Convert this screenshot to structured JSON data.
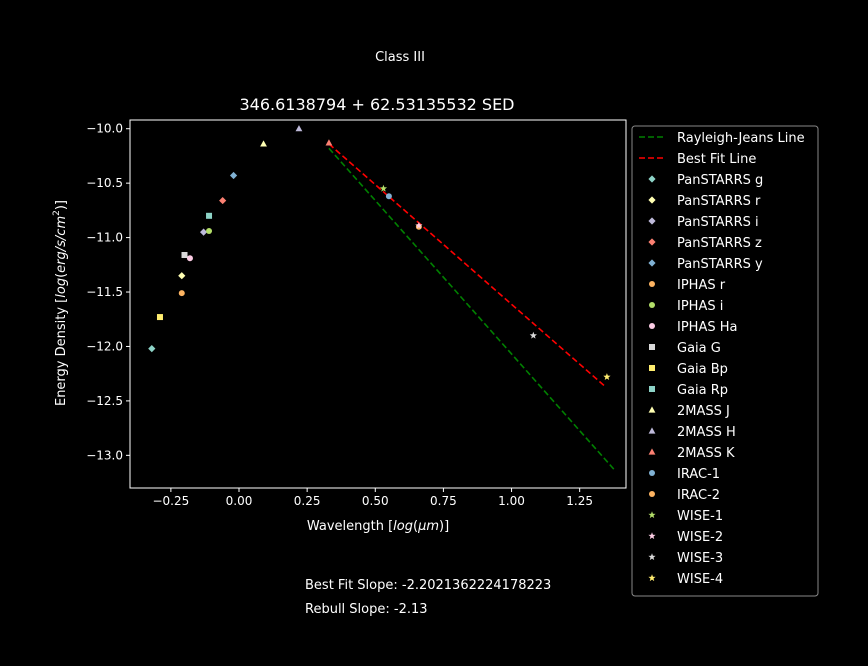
{
  "suptitle": "Class III",
  "footer": {
    "best_fit": "Best Fit Slope: -2.2021362224178223",
    "rebull": "Rebull Slope: -2.13"
  },
  "chart_data": {
    "type": "scatter",
    "title": "346.6138794 + 62.53135532 SED",
    "xlabel": "Wavelength [log(μm)]",
    "ylabel": "Energy Density [log(erg/s/cm²)]",
    "xlim": [
      -0.4,
      1.42
    ],
    "ylim": [
      -13.3,
      -9.92
    ],
    "xticks": [
      -0.25,
      0.0,
      0.25,
      0.5,
      0.75,
      1.0,
      1.25
    ],
    "xtick_labels": [
      "−0.25",
      "0.00",
      "0.25",
      "0.50",
      "0.75",
      "1.00",
      "1.25"
    ],
    "yticks": [
      -10.0,
      -10.5,
      -11.0,
      -11.5,
      -12.0,
      -12.5,
      -13.0
    ],
    "ytick_labels": [
      "−10.0",
      "−10.5",
      "−11.0",
      "−11.5",
      "−12.0",
      "−12.5",
      "−13.0"
    ],
    "legend_position": "outside-right",
    "lines": [
      {
        "name": "Rayleigh-Jeans Line",
        "color": "#008000",
        "dash": "dashed",
        "x": [
          0.33,
          1.38
        ],
        "y": [
          -10.18,
          -13.14
        ]
      },
      {
        "name": "Best Fit Line",
        "color": "#ff0000",
        "dash": "dashed",
        "x": [
          0.33,
          1.34
        ],
        "y": [
          -10.14,
          -12.36
        ]
      }
    ],
    "series": [
      {
        "name": "PanSTARRS g",
        "color": "#8dd3c7",
        "marker": "diamond",
        "x": [
          -0.32
        ],
        "y": [
          -12.02
        ]
      },
      {
        "name": "PanSTARRS r",
        "color": "#ffffb3",
        "marker": "diamond",
        "x": [
          -0.21
        ],
        "y": [
          -11.35
        ]
      },
      {
        "name": "PanSTARRS i",
        "color": "#bebada",
        "marker": "diamond",
        "x": [
          -0.13
        ],
        "y": [
          -10.95
        ]
      },
      {
        "name": "PanSTARRS z",
        "color": "#fb8072",
        "marker": "diamond",
        "x": [
          -0.06
        ],
        "y": [
          -10.66
        ]
      },
      {
        "name": "PanSTARRS y",
        "color": "#80b1d3",
        "marker": "diamond",
        "x": [
          -0.02
        ],
        "y": [
          -10.43
        ]
      },
      {
        "name": "IPHAS r",
        "color": "#fdb462",
        "marker": "circle",
        "x": [
          -0.21
        ],
        "y": [
          -11.51
        ]
      },
      {
        "name": "IPHAS i",
        "color": "#b3de69",
        "marker": "circle",
        "x": [
          -0.11
        ],
        "y": [
          -10.94
        ]
      },
      {
        "name": "IPHAS Ha",
        "color": "#fccde5",
        "marker": "circle",
        "x": [
          -0.18
        ],
        "y": [
          -11.19
        ]
      },
      {
        "name": "Gaia G",
        "color": "#d9d9d9",
        "marker": "square",
        "x": [
          -0.2
        ],
        "y": [
          -11.16
        ]
      },
      {
        "name": "Gaia Bp",
        "color": "#ffed6f",
        "marker": "square",
        "x": [
          -0.29
        ],
        "y": [
          -11.73
        ]
      },
      {
        "name": "Gaia Rp",
        "color": "#8dd3c7",
        "marker": "square",
        "x": [
          -0.11
        ],
        "y": [
          -10.8
        ]
      },
      {
        "name": "2MASS J",
        "color": "#ffffb3",
        "marker": "triangle",
        "x": [
          0.09
        ],
        "y": [
          -10.14
        ]
      },
      {
        "name": "2MASS H",
        "color": "#bebada",
        "marker": "triangle",
        "x": [
          0.22
        ],
        "y": [
          -10.0
        ]
      },
      {
        "name": "2MASS K",
        "color": "#fb8072",
        "marker": "triangle",
        "x": [
          0.33
        ],
        "y": [
          -10.13
        ]
      },
      {
        "name": "IRAC-1",
        "color": "#80b1d3",
        "marker": "circle",
        "x": [
          0.55
        ],
        "y": [
          -10.62
        ]
      },
      {
        "name": "IRAC-2",
        "color": "#fdb462",
        "marker": "circle",
        "x": [
          0.66
        ],
        "y": [
          -10.9
        ]
      },
      {
        "name": "WISE-1",
        "color": "#b3de69",
        "marker": "star",
        "x": [
          0.53
        ],
        "y": [
          -10.55
        ]
      },
      {
        "name": "WISE-2",
        "color": "#fccde5",
        "marker": "star",
        "x": [
          0.66
        ],
        "y": [
          -10.89
        ]
      },
      {
        "name": "WISE-3",
        "color": "#d9d9d9",
        "marker": "star",
        "x": [
          1.08
        ],
        "y": [
          -11.9
        ]
      },
      {
        "name": "WISE-4",
        "color": "#ffed6f",
        "marker": "star",
        "x": [
          1.35
        ],
        "y": [
          -12.28
        ]
      }
    ]
  }
}
